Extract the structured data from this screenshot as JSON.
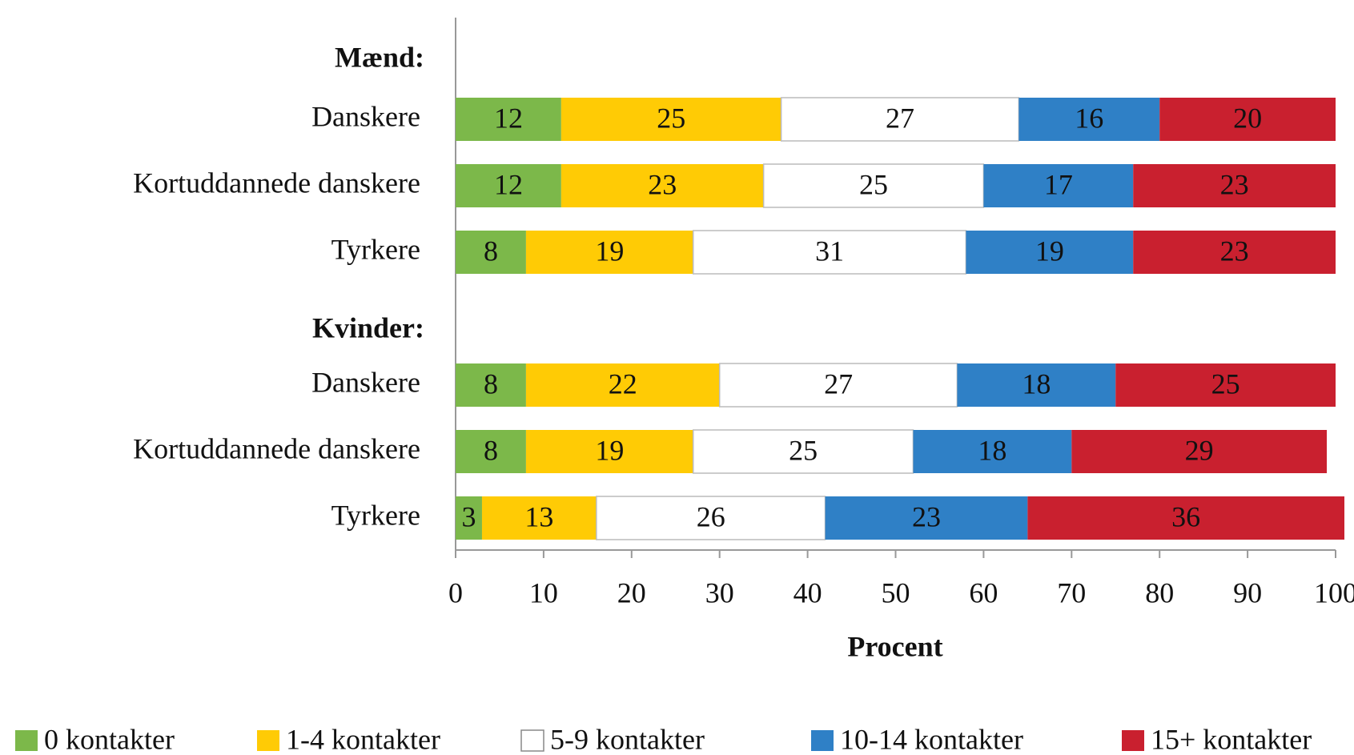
{
  "chart_data": {
    "type": "stacked_bar_horizontal",
    "categories": [
      "Mænd:",
      "Danskere",
      "Kortuddannede danskere",
      "Tyrkere",
      "Kvinder:",
      "Danskere",
      "Kortuddannede danskere",
      "Tyrkere"
    ],
    "series": [
      {
        "name": "0 kontakter",
        "color": "#7cb84a",
        "values": [
          null,
          12,
          12,
          8,
          null,
          8,
          8,
          3
        ]
      },
      {
        "name": "1-4 kontakter",
        "color": "#ffcb05",
        "values": [
          null,
          25,
          23,
          19,
          null,
          22,
          19,
          13
        ]
      },
      {
        "name": "5-9 kontakter",
        "color": "#ffffff",
        "values": [
          null,
          27,
          25,
          31,
          null,
          27,
          25,
          26
        ]
      },
      {
        "name": "10-14 kontakter",
        "color": "#2f80c6",
        "values": [
          null,
          16,
          17,
          19,
          null,
          18,
          18,
          23
        ]
      },
      {
        "name": "15+ kontakter",
        "color": "#c9202f",
        "values": [
          null,
          20,
          23,
          23,
          null,
          25,
          29,
          36
        ]
      }
    ],
    "xlabel": "Procent",
    "xlim": [
      0,
      100
    ],
    "xticks": [
      0,
      10,
      20,
      30,
      40,
      50,
      60,
      70,
      80,
      90,
      100
    ],
    "legend": "bottom"
  }
}
